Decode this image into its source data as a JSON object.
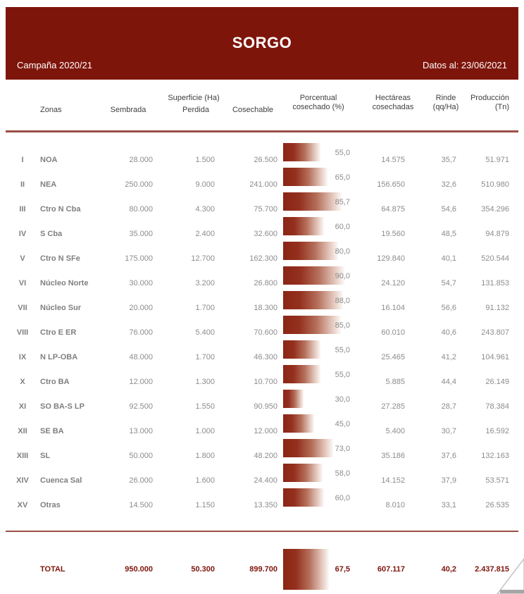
{
  "header": {
    "title": "SORGO",
    "campaign": "Campaña 2020/21",
    "data_date": "Datos al: 23/06/2021"
  },
  "colors": {
    "brand": "#7E150B",
    "divider_line": "#9C4F47",
    "bar_gradient_start": "#8B2515",
    "bar_gradient_end": "#FCF9F8",
    "number_text": "#8C8C8C"
  },
  "columns": {
    "zonas": "Zonas",
    "superficie_group": "Superficie (Ha)",
    "sembrada": "Sembrada",
    "perdida": "Perdida",
    "cosechable": "Cosechable",
    "porcentual_line1": "Porcentual",
    "porcentual_line2": "cosechado (%)",
    "hectareas_line1": "Hectáreas",
    "hectareas_line2": "cosechadas",
    "rinde_line1": "Rinde",
    "rinde_line2": "(qq/Ha)",
    "produccion_line1": "Producción",
    "produccion_line2": "(Tn)"
  },
  "rows": [
    {
      "numeral": "I",
      "zone": "NOA",
      "sembrada": "28.000",
      "perdida": "1.500",
      "cosechable": "26.500",
      "pct": 55.0,
      "pct_label": "55,0",
      "hectareas": "14.575",
      "rinde": "35,7",
      "produccion": "51.971"
    },
    {
      "numeral": "II",
      "zone": "NEA",
      "sembrada": "250.000",
      "perdida": "9.000",
      "cosechable": "241.000",
      "pct": 65.0,
      "pct_label": "65,0",
      "hectareas": "156.650",
      "rinde": "32,6",
      "produccion": "510.980"
    },
    {
      "numeral": "III",
      "zone": "Ctro N Cba",
      "sembrada": "80.000",
      "perdida": "4.300",
      "cosechable": "75.700",
      "pct": 85.7,
      "pct_label": "85,7",
      "hectareas": "64.875",
      "rinde": "54,6",
      "produccion": "354.296"
    },
    {
      "numeral": "IV",
      "zone": "S Cba",
      "sembrada": "35.000",
      "perdida": "2.400",
      "cosechable": "32.600",
      "pct": 60.0,
      "pct_label": "60,0",
      "hectareas": "19.560",
      "rinde": "48,5",
      "produccion": "94.879"
    },
    {
      "numeral": "V",
      "zone": "Ctro N SFe",
      "sembrada": "175.000",
      "perdida": "12.700",
      "cosechable": "162.300",
      "pct": 80.0,
      "pct_label": "80,0",
      "hectareas": "129.840",
      "rinde": "40,1",
      "produccion": "520.544"
    },
    {
      "numeral": "VI",
      "zone": "Núcleo Norte",
      "sembrada": "30.000",
      "perdida": "3.200",
      "cosechable": "26.800",
      "pct": 90.0,
      "pct_label": "90,0",
      "hectareas": "24.120",
      "rinde": "54,7",
      "produccion": "131.853"
    },
    {
      "numeral": "VII",
      "zone": "Núcleo Sur",
      "sembrada": "20.000",
      "perdida": "1.700",
      "cosechable": "18.300",
      "pct": 88.0,
      "pct_label": "88,0",
      "hectareas": "16.104",
      "rinde": "56,6",
      "produccion": "91.132"
    },
    {
      "numeral": "VIII",
      "zone": "Ctro E ER",
      "sembrada": "76.000",
      "perdida": "5.400",
      "cosechable": "70.600",
      "pct": 85.0,
      "pct_label": "85,0",
      "hectareas": "60.010",
      "rinde": "40,6",
      "produccion": "243.807"
    },
    {
      "numeral": "IX",
      "zone": "N LP-OBA",
      "sembrada": "48.000",
      "perdida": "1.700",
      "cosechable": "46.300",
      "pct": 55.0,
      "pct_label": "55,0",
      "hectareas": "25.465",
      "rinde": "41,2",
      "produccion": "104.961"
    },
    {
      "numeral": "X",
      "zone": "Ctro BA",
      "sembrada": "12.000",
      "perdida": "1.300",
      "cosechable": "10.700",
      "pct": 55.0,
      "pct_label": "55,0",
      "hectareas": "5.885",
      "rinde": "44,4",
      "produccion": "26.149"
    },
    {
      "numeral": "XI",
      "zone": "SO BA-S LP",
      "sembrada": "92.500",
      "perdida": "1.550",
      "cosechable": "90.950",
      "pct": 30.0,
      "pct_label": "30,0",
      "hectareas": "27.285",
      "rinde": "28,7",
      "produccion": "78.384"
    },
    {
      "numeral": "XII",
      "zone": "SE BA",
      "sembrada": "13.000",
      "perdida": "1.000",
      "cosechable": "12.000",
      "pct": 45.0,
      "pct_label": "45,0",
      "hectareas": "5.400",
      "rinde": "30,7",
      "produccion": "16.592"
    },
    {
      "numeral": "XIII",
      "zone": "SL",
      "sembrada": "50.000",
      "perdida": "1.800",
      "cosechable": "48.200",
      "pct": 73.0,
      "pct_label": "73,0",
      "hectareas": "35.186",
      "rinde": "37,6",
      "produccion": "132.163"
    },
    {
      "numeral": "XIV",
      "zone": "Cuenca Sal",
      "sembrada": "26.000",
      "perdida": "1.600",
      "cosechable": "24.400",
      "pct": 58.0,
      "pct_label": "58,0",
      "hectareas": "14.152",
      "rinde": "37,9",
      "produccion": "53.571"
    },
    {
      "numeral": "XV",
      "zone": "Otras",
      "sembrada": "14.500",
      "perdida": "1.150",
      "cosechable": "13.350",
      "pct": 60.0,
      "pct_label": "60,0",
      "hectareas": "8.010",
      "rinde": "33,1",
      "produccion": "26.535"
    }
  ],
  "total": {
    "label": "TOTAL",
    "sembrada": "950.000",
    "perdida": "50.300",
    "cosechable": "899.700",
    "pct": 67.5,
    "pct_label": "67,5",
    "hectareas": "607.117",
    "rinde": "40,2",
    "produccion": "2.437.815"
  },
  "chart_data": {
    "type": "bar",
    "title": "Porcentual cosechado (%)",
    "orientation": "horizontal",
    "categories": [
      "NOA",
      "NEA",
      "Ctro N Cba",
      "S Cba",
      "Ctro N SFe",
      "Núcleo Norte",
      "Núcleo Sur",
      "Ctro E ER",
      "N LP-OBA",
      "Ctro BA",
      "SO BA-S LP",
      "SE BA",
      "SL",
      "Cuenca Sal",
      "Otras",
      "TOTAL"
    ],
    "values": [
      55.0,
      65.0,
      85.7,
      60.0,
      80.0,
      90.0,
      88.0,
      85.0,
      55.0,
      55.0,
      30.0,
      45.0,
      73.0,
      58.0,
      60.0,
      67.5
    ],
    "xlim": [
      0,
      100
    ],
    "grid": false,
    "legend": false
  }
}
